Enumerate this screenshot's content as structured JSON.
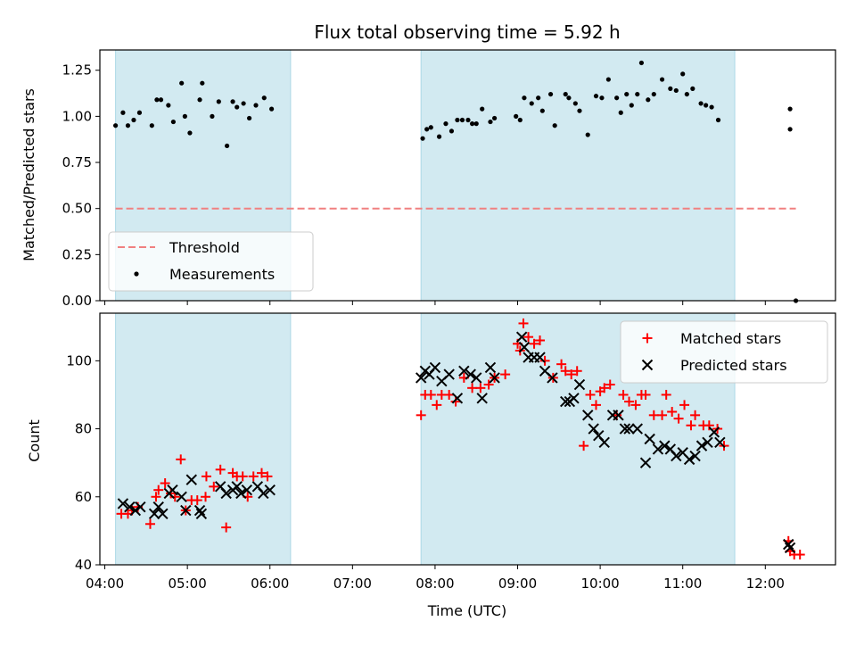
{
  "chart_data": {
    "title": "Flux total observing time = 5.92 h",
    "xlabel": "Time (UTC)",
    "x_ticks": [
      "04:00",
      "05:00",
      "06:00",
      "07:00",
      "08:00",
      "09:00",
      "10:00",
      "11:00",
      "12:00"
    ],
    "x_tick_hours": [
      4,
      5,
      6,
      7,
      8,
      9,
      10,
      11,
      12
    ],
    "xlim_hours": [
      3.94,
      12.85
    ],
    "shaded_intervals_hours": [
      [
        4.13,
        6.25
      ],
      [
        7.83,
        11.63
      ]
    ],
    "colors": {
      "shade": "#add8e6",
      "threshold": "#f08080",
      "matched": "#ff0000",
      "predicted": "#000000",
      "measurements": "#000000"
    },
    "panels": [
      {
        "type": "scatter",
        "ylabel": "Matched/Predicted stars",
        "ylim": [
          0,
          1.36
        ],
        "y_ticks": [
          "0.00",
          "0.25",
          "0.50",
          "0.75",
          "1.00",
          "1.25"
        ],
        "y_tick_values": [
          0,
          0.25,
          0.5,
          0.75,
          1.0,
          1.25
        ],
        "legend_position": "lower-left",
        "threshold": {
          "name": "Threshold",
          "value": 0.5,
          "x_range": [
            4.13,
            12.37
          ]
        },
        "measurements": {
          "name": "Measurements",
          "points": [
            [
              4.13,
              0.95
            ],
            [
              4.22,
              1.02
            ],
            [
              4.28,
              0.95
            ],
            [
              4.35,
              0.98
            ],
            [
              4.42,
              1.02
            ],
            [
              4.57,
              0.95
            ],
            [
              4.63,
              1.09
            ],
            [
              4.68,
              1.09
            ],
            [
              4.77,
              1.06
            ],
            [
              4.83,
              0.97
            ],
            [
              4.93,
              1.18
            ],
            [
              4.97,
              1.0
            ],
            [
              5.03,
              0.91
            ],
            [
              5.15,
              1.09
            ],
            [
              5.18,
              1.18
            ],
            [
              5.3,
              1.0
            ],
            [
              5.38,
              1.08
            ],
            [
              5.48,
              0.84
            ],
            [
              5.55,
              1.08
            ],
            [
              5.6,
              1.05
            ],
            [
              5.68,
              1.07
            ],
            [
              5.75,
              0.99
            ],
            [
              5.83,
              1.06
            ],
            [
              5.93,
              1.1
            ],
            [
              6.02,
              1.04
            ],
            [
              7.85,
              0.88
            ],
            [
              7.9,
              0.93
            ],
            [
              7.95,
              0.94
            ],
            [
              8.05,
              0.89
            ],
            [
              8.13,
              0.96
            ],
            [
              8.2,
              0.92
            ],
            [
              8.27,
              0.98
            ],
            [
              8.33,
              0.98
            ],
            [
              8.4,
              0.98
            ],
            [
              8.45,
              0.96
            ],
            [
              8.5,
              0.96
            ],
            [
              8.57,
              1.04
            ],
            [
              8.67,
              0.97
            ],
            [
              8.72,
              0.99
            ],
            [
              8.98,
              1.0
            ],
            [
              9.03,
              0.98
            ],
            [
              9.08,
              1.1
            ],
            [
              9.17,
              1.07
            ],
            [
              9.25,
              1.1
            ],
            [
              9.3,
              1.03
            ],
            [
              9.4,
              1.12
            ],
            [
              9.45,
              0.95
            ],
            [
              9.58,
              1.12
            ],
            [
              9.62,
              1.1
            ],
            [
              9.7,
              1.07
            ],
            [
              9.75,
              1.03
            ],
            [
              9.85,
              0.9
            ],
            [
              9.95,
              1.11
            ],
            [
              10.02,
              1.1
            ],
            [
              10.1,
              1.2
            ],
            [
              10.2,
              1.1
            ],
            [
              10.25,
              1.02
            ],
            [
              10.32,
              1.12
            ],
            [
              10.38,
              1.06
            ],
            [
              10.45,
              1.12
            ],
            [
              10.5,
              1.29
            ],
            [
              10.58,
              1.09
            ],
            [
              10.65,
              1.12
            ],
            [
              10.75,
              1.2
            ],
            [
              10.85,
              1.15
            ],
            [
              10.92,
              1.14
            ],
            [
              11.0,
              1.23
            ],
            [
              11.05,
              1.12
            ],
            [
              11.12,
              1.15
            ],
            [
              11.22,
              1.07
            ],
            [
              11.28,
              1.06
            ],
            [
              11.35,
              1.05
            ],
            [
              11.43,
              0.98
            ],
            [
              12.3,
              1.04
            ],
            [
              12.3,
              0.93
            ],
            [
              12.37,
              0.0
            ]
          ]
        },
        "legend": [
          "Threshold",
          "Measurements"
        ]
      },
      {
        "type": "scatter",
        "ylabel": "Count",
        "ylim": [
          40,
          114
        ],
        "y_ticks": [
          "40",
          "60",
          "80",
          "100"
        ],
        "y_tick_values": [
          40,
          60,
          80,
          100
        ],
        "legend_position": "upper-right",
        "legend": [
          "Matched stars",
          "Predicted stars"
        ],
        "series": [
          {
            "name": "Matched stars",
            "marker": "+",
            "points": [
              [
                4.2,
                55
              ],
              [
                4.28,
                55
              ],
              [
                4.33,
                56
              ],
              [
                4.4,
                57
              ],
              [
                4.55,
                52
              ],
              [
                4.62,
                60
              ],
              [
                4.65,
                62
              ],
              [
                4.73,
                64
              ],
              [
                4.8,
                61
              ],
              [
                4.85,
                60
              ],
              [
                4.92,
                71
              ],
              [
                4.98,
                56
              ],
              [
                5.05,
                59
              ],
              [
                5.12,
                59
              ],
              [
                5.22,
                60
              ],
              [
                5.23,
                66
              ],
              [
                5.32,
                63
              ],
              [
                5.4,
                68
              ],
              [
                5.47,
                51
              ],
              [
                5.55,
                67
              ],
              [
                5.6,
                66
              ],
              [
                5.67,
                66
              ],
              [
                5.73,
                60
              ],
              [
                5.8,
                66
              ],
              [
                5.9,
                67
              ],
              [
                5.97,
                66
              ],
              [
                7.83,
                84
              ],
              [
                7.88,
                90
              ],
              [
                7.95,
                90
              ],
              [
                8.02,
                87
              ],
              [
                8.08,
                90
              ],
              [
                8.17,
                90
              ],
              [
                8.25,
                88
              ],
              [
                8.35,
                95
              ],
              [
                8.45,
                92
              ],
              [
                8.55,
                92
              ],
              [
                8.65,
                93
              ],
              [
                8.72,
                95
              ],
              [
                8.85,
                96
              ],
              [
                9.0,
                105
              ],
              [
                9.03,
                103
              ],
              [
                9.07,
                111
              ],
              [
                9.13,
                107
              ],
              [
                9.2,
                105
              ],
              [
                9.27,
                106
              ],
              [
                9.33,
                100
              ],
              [
                9.43,
                95
              ],
              [
                9.53,
                99
              ],
              [
                9.58,
                97
              ],
              [
                9.65,
                96
              ],
              [
                9.72,
                97
              ],
              [
                9.8,
                75
              ],
              [
                9.88,
                90
              ],
              [
                9.95,
                87
              ],
              [
                10.0,
                91
              ],
              [
                10.05,
                92
              ],
              [
                10.12,
                93
              ],
              [
                10.2,
                84
              ],
              [
                10.28,
                90
              ],
              [
                10.35,
                88
              ],
              [
                10.43,
                87
              ],
              [
                10.5,
                90
              ],
              [
                10.55,
                90
              ],
              [
                10.65,
                84
              ],
              [
                10.75,
                84
              ],
              [
                10.8,
                90
              ],
              [
                10.87,
                85
              ],
              [
                10.95,
                83
              ],
              [
                11.02,
                87
              ],
              [
                11.1,
                81
              ],
              [
                11.15,
                84
              ],
              [
                11.25,
                81
              ],
              [
                11.32,
                81
              ],
              [
                11.42,
                80
              ],
              [
                11.5,
                75
              ],
              [
                12.28,
                47
              ],
              [
                12.3,
                44
              ],
              [
                12.35,
                43
              ],
              [
                12.42,
                43
              ]
            ]
          },
          {
            "name": "Predicted stars",
            "marker": "x",
            "points": [
              [
                4.22,
                58
              ],
              [
                4.3,
                57
              ],
              [
                4.37,
                56
              ],
              [
                4.43,
                57
              ],
              [
                4.6,
                55
              ],
              [
                4.65,
                57
              ],
              [
                4.7,
                55
              ],
              [
                4.78,
                61
              ],
              [
                4.82,
                62
              ],
              [
                4.93,
                60
              ],
              [
                4.98,
                56
              ],
              [
                5.05,
                65
              ],
              [
                5.15,
                56
              ],
              [
                5.17,
                55
              ],
              [
                5.4,
                63
              ],
              [
                5.47,
                61
              ],
              [
                5.55,
                62
              ],
              [
                5.6,
                63
              ],
              [
                5.65,
                61
              ],
              [
                5.72,
                62
              ],
              [
                5.85,
                63
              ],
              [
                5.92,
                61
              ],
              [
                6.0,
                62
              ],
              [
                7.83,
                95
              ],
              [
                7.88,
                97
              ],
              [
                7.93,
                96
              ],
              [
                8.0,
                98
              ],
              [
                8.08,
                94
              ],
              [
                8.17,
                96
              ],
              [
                8.27,
                89
              ],
              [
                8.35,
                97
              ],
              [
                8.43,
                96
              ],
              [
                8.5,
                95
              ],
              [
                8.57,
                89
              ],
              [
                8.67,
                98
              ],
              [
                8.72,
                95
              ],
              [
                9.05,
                107
              ],
              [
                9.08,
                104
              ],
              [
                9.13,
                101
              ],
              [
                9.2,
                101
              ],
              [
                9.27,
                101
              ],
              [
                9.33,
                97
              ],
              [
                9.42,
                95
              ],
              [
                9.58,
                88
              ],
              [
                9.63,
                88
              ],
              [
                9.68,
                89
              ],
              [
                9.75,
                93
              ],
              [
                9.85,
                84
              ],
              [
                9.92,
                80
              ],
              [
                9.98,
                78
              ],
              [
                10.05,
                76
              ],
              [
                10.15,
                84
              ],
              [
                10.22,
                84
              ],
              [
                10.3,
                80
              ],
              [
                10.35,
                80
              ],
              [
                10.45,
                80
              ],
              [
                10.55,
                70
              ],
              [
                10.6,
                77
              ],
              [
                10.7,
                74
              ],
              [
                10.78,
                75
              ],
              [
                10.85,
                74
              ],
              [
                10.92,
                72
              ],
              [
                11.0,
                73
              ],
              [
                11.08,
                71
              ],
              [
                11.15,
                72
              ],
              [
                11.23,
                75
              ],
              [
                11.3,
                76
              ],
              [
                11.38,
                79
              ],
              [
                11.45,
                76
              ],
              [
                12.28,
                46
              ],
              [
                12.3,
                45
              ]
            ]
          }
        ]
      }
    ]
  }
}
